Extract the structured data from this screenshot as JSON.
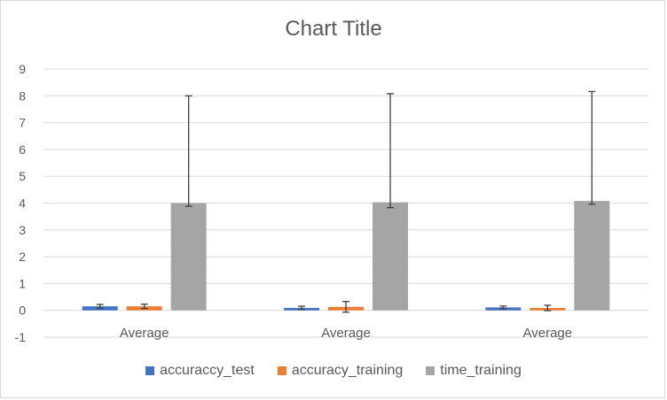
{
  "chart_data": {
    "type": "bar",
    "title": "Chart Title",
    "xlabel": "",
    "ylabel": "",
    "ylim": [
      -1,
      9
    ],
    "yticks": [
      -1,
      0,
      1,
      2,
      3,
      4,
      5,
      6,
      7,
      8,
      9
    ],
    "grid": true,
    "legend_position": "bottom",
    "categories": [
      "Average",
      "Average",
      "Average"
    ],
    "series": [
      {
        "name": "accuraccy_test",
        "color": "#4472c4",
        "values": [
          0.15,
          0.09,
          0.11
        ],
        "error": [
          0.07,
          0.06,
          0.05
        ]
      },
      {
        "name": "accuracy_training",
        "color": "#ed7d31",
        "values": [
          0.15,
          0.13,
          0.09
        ],
        "error": [
          0.08,
          0.2,
          0.1
        ]
      },
      {
        "name": "time_training",
        "color": "#a5a5a5",
        "values": [
          4.0,
          4.03,
          4.08
        ],
        "error_upper": [
          4.0,
          4.05,
          4.08
        ],
        "error_lower": [
          0.12,
          0.2,
          0.12
        ]
      }
    ]
  }
}
